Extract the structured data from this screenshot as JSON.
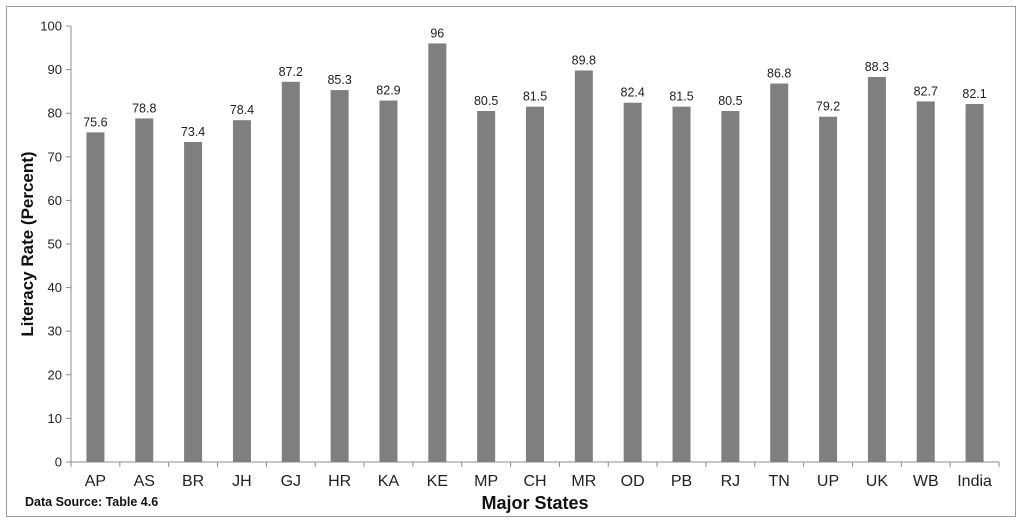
{
  "chart_data": {
    "type": "bar",
    "categories": [
      "AP",
      "AS",
      "BR",
      "JH",
      "GJ",
      "HR",
      "KA",
      "KE",
      "MP",
      "CH",
      "MR",
      "OD",
      "PB",
      "RJ",
      "TN",
      "UP",
      "UK",
      "WB",
      "India"
    ],
    "values": [
      75.6,
      78.8,
      73.4,
      78.4,
      87.2,
      85.3,
      82.9,
      96,
      80.5,
      81.5,
      89.8,
      82.4,
      81.5,
      80.5,
      86.8,
      79.2,
      88.3,
      82.7,
      82.1
    ],
    "value_labels": [
      "75.6",
      "78.8",
      "73.4",
      "78.4",
      "87.2",
      "85.3",
      "82.9",
      "96",
      "80.5",
      "81.5",
      "89.8",
      "82.4",
      "81.5",
      "80.5",
      "86.8",
      "79.2",
      "88.3",
      "82.7",
      "82.1"
    ],
    "xlabel": "Major States",
    "ylabel": "Literacy Rate (Percent)",
    "ylim": [
      0,
      100
    ],
    "yticks": [
      0,
      10,
      20,
      30,
      40,
      50,
      60,
      70,
      80,
      90,
      100
    ],
    "grid": false,
    "legend": "none",
    "bar_color": "#7f7f7f"
  },
  "source_note": "Data Source: Table 4.6"
}
